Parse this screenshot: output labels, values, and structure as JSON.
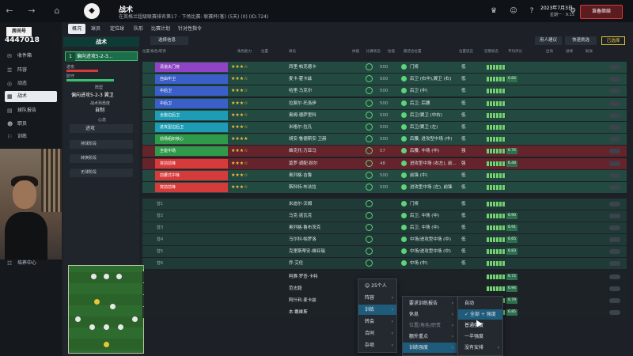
{
  "topbar": {
    "page_title": "战术",
    "page_sub": "在英格兰超级联赛排名第17 · 下场比赛: 联赛杯(客) (5天) (0) (ID:724)",
    "date": "2023年7月3日",
    "week": "星期一 · 9:15",
    "continue": "准备继续"
  },
  "leftnav": {
    "header": "房间号",
    "balance": "4447018",
    "items": [
      "收件箱",
      "阵容",
      "动态",
      "战术",
      "球队报告",
      "职员",
      "训练"
    ],
    "bottom": "培养中心"
  },
  "subtabs": [
    "概况",
    "球员",
    "定位球",
    "队形",
    "比赛计划",
    "针对性指令"
  ],
  "tactics": {
    "header": "战术",
    "slot_num": "1",
    "slot_name": "偏向进攻5-2-3...",
    "mentality_label": "阵型",
    "formation": "偏向进攻5-2-3 翼卫",
    "familiarity_label": "战术熟悉度",
    "familiarity": "自制",
    "mentality2_label": "心态",
    "mentality2": "进攻",
    "buttons": [
      "持球阶段",
      "转换阶段",
      "无球阶段"
    ]
  },
  "toolbar": {
    "selection": "选择信息",
    "suggest": "用人建议",
    "quick_pick": "快速挑选",
    "picked": "已选择"
  },
  "columns": [
    "位置/角色/职责",
    "角色能力",
    "位置",
    "球员",
    "体能",
    "比赛状态",
    "估值",
    "最适合位置",
    "位置适应",
    "近期状态",
    "平均评分",
    "出场",
    "进球",
    "助攻"
  ],
  "lineup": [
    {
      "pos": "清道夫门将",
      "color": "#8e44c4",
      "player": "西里·帕克德卡",
      "value": "500",
      "role": "门将",
      "fit": "低",
      "rating": "",
      "stars": "★★★☆"
    },
    {
      "pos": "自由中卫",
      "color": "#3a5fc9",
      "player": "麦卡·霍卡兹",
      "value": "500",
      "role": "后卫 (右中),翼卫 (右)",
      "fit": "低",
      "rating": "6.64",
      "stars": "★★★☆"
    },
    {
      "pos": "中后卫",
      "color": "#3a5fc9",
      "player": "哈里·马克尔",
      "value": "500",
      "role": "后卫 (中)",
      "fit": "低",
      "rating": "",
      "stars": "★★★☆"
    },
    {
      "pos": "中后卫",
      "color": "#3a5fc9",
      "player": "拉斐尔·托洛伊",
      "value": "500",
      "role": "后卫, 后腰",
      "fit": "低",
      "rating": "",
      "stars": "★★★☆"
    },
    {
      "pos": "全能边后卫",
      "color": "#1e9cb5",
      "player": "奥姆·德萨里科",
      "value": "500",
      "role": "后卫/翼卫 (中右)",
      "fit": "低",
      "rating": "",
      "stars": "★★★☆"
    },
    {
      "pos": "进攻型边后卫",
      "color": "#1e9cb5",
      "player": "米格尔·拉孔",
      "value": "500",
      "role": "后卫/翼卫 (左)",
      "fit": "低",
      "rating": "",
      "stars": "★★★☆"
    },
    {
      "pos": "前场组织核心",
      "color": "#2e9a4a",
      "player": "胡安·鲁德斯安·卫赫",
      "value": "500",
      "role": "后腰, 进攻型中场 (中)",
      "fit": "低",
      "rating": "",
      "stars": "★★★★"
    },
    {
      "pos": "全能中场",
      "color": "#2e9a4a",
      "player": "维克托·万亚马",
      "value": "57",
      "role": "后腰, 中场 (中)",
      "fit": "强",
      "rating": "6.76",
      "stars": "★★★☆"
    },
    {
      "pos": "突前前锋",
      "color": "#d63b3b",
      "player": "莫罗·调配·耐尔",
      "value": "48",
      "role": "进攻型中场 (右左), 前...",
      "fit": "强",
      "rating": "6.48",
      "stars": "★★★☆"
    },
    {
      "pos": "前腰式中锋",
      "color": "#d63b3b",
      "player": "奥列格·吉鲁",
      "value": "500",
      "role": "前锋 (中)",
      "fit": "低",
      "rating": "",
      "stars": "★★★☆"
    },
    {
      "pos": "突前前锋",
      "color": "#d63b3b",
      "player": "斯科特·布法拉",
      "value": "500",
      "role": "进攻型中场 (左), 前锋",
      "fit": "低",
      "rating": "",
      "stars": "★★★☆"
    }
  ],
  "subs": [
    {
      "slot": "替1",
      "player": "米迪尔·沃姆",
      "role": "门将",
      "fit": "低",
      "rating": ""
    },
    {
      "slot": "替2",
      "player": "马克·诺瓦克",
      "role": "后卫, 中场 (中)",
      "fit": "低",
      "rating": "6.90"
    },
    {
      "slot": "替3",
      "player": "奥列格·鲁布茨克",
      "role": "后卫, 中场 (中)",
      "fit": "低",
      "rating": "6.91"
    },
    {
      "slot": "替4",
      "player": "马尔科·帕罗洛",
      "role": "中场/进攻型中场 (中)",
      "fit": "低",
      "rating": "6.65"
    },
    {
      "slot": "替5",
      "player": "克里斯蒂安·维亚瑞",
      "role": "中场/进攻型中场 (中)",
      "fit": "低",
      "rating": "6.83"
    },
    {
      "slot": "替6",
      "player": "乔·艾伦",
      "role": "中场 (中)",
      "fit": "低",
      "rating": ""
    }
  ],
  "reserves": [
    {
      "player": "阿赛·罗查·卡特",
      "rating": "6.72"
    },
    {
      "player": "范志毅",
      "rating": "6.94"
    },
    {
      "player": "阿什利·麦卡兹",
      "rating": "6.79"
    },
    {
      "player": "本·戴维斯",
      "rating": "6.85"
    }
  ],
  "menus": {
    "main": {
      "count": "25个人",
      "items": [
        "阵容",
        "训练",
        "转会",
        "合同",
        "杂项"
      ]
    },
    "training": {
      "items": [
        "要求训练报告",
        "休息",
        "位置/角色/职责",
        "额外重点",
        "训练强度"
      ]
    },
    "intensity": {
      "items": [
        "自动",
        "全部 + 强度",
        "普通强度",
        "一半强度",
        "没有安排"
      ]
    }
  }
}
